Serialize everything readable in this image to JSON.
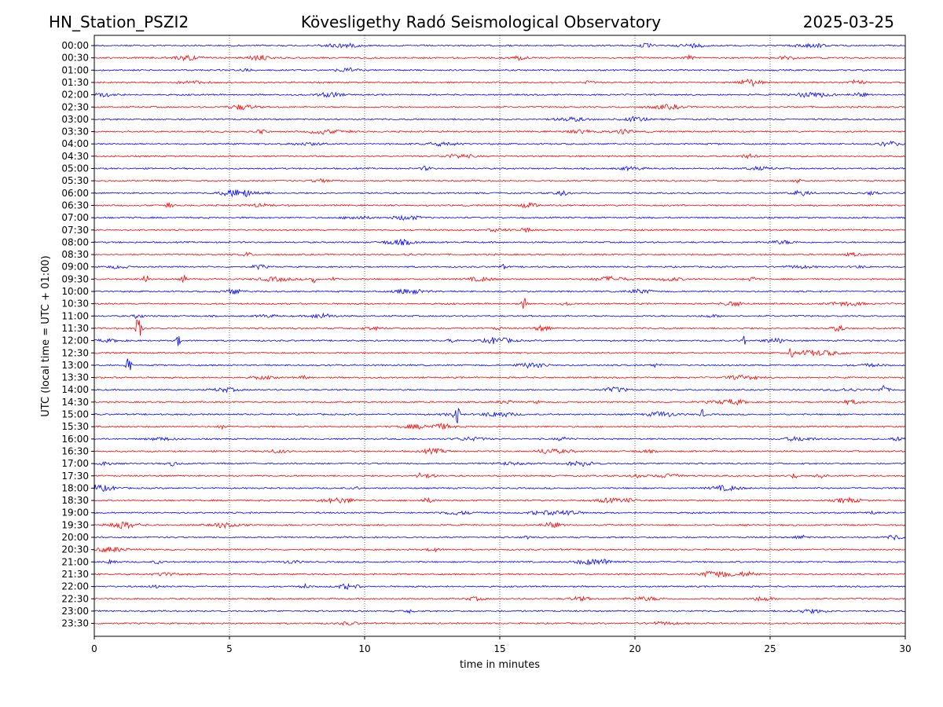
{
  "header": {
    "station": "HN_Station_PSZI2",
    "observatory": "Kövesligethy Radó Seismological Observatory",
    "date": "2025-03-25"
  },
  "colors": {
    "even_row": "#0000ff",
    "odd_row": "#ff0000",
    "grid": "#000000",
    "frame": "#000000"
  },
  "chart_data": {
    "type": "line",
    "title": "Kövesligethy Radó Seismological Observatory",
    "xlabel": "time in minutes",
    "ylabel": "UTC (local time = UTC + 01:00)",
    "xlim": [
      0,
      30
    ],
    "x_ticks": [
      0,
      5,
      10,
      15,
      20,
      25,
      30
    ],
    "grid": "vertical dotted at x ticks",
    "rows": [
      "00:00",
      "00:30",
      "01:00",
      "01:30",
      "02:00",
      "02:30",
      "03:00",
      "03:30",
      "04:00",
      "04:30",
      "05:00",
      "05:30",
      "06:00",
      "06:30",
      "07:00",
      "07:30",
      "08:00",
      "08:30",
      "09:00",
      "09:30",
      "10:00",
      "10:30",
      "11:00",
      "11:30",
      "12:00",
      "12:30",
      "13:00",
      "13:30",
      "14:00",
      "14:30",
      "15:00",
      "15:30",
      "16:00",
      "16:30",
      "17:00",
      "17:30",
      "18:00",
      "18:30",
      "19:00",
      "19:30",
      "20:00",
      "20:30",
      "21:00",
      "21:30",
      "22:00",
      "22:30",
      "23:00",
      "23:30"
    ],
    "events": [
      {
        "row": "09:30",
        "minute": 1.9,
        "amplitude": 0.5
      },
      {
        "row": "09:30",
        "minute": 3.3,
        "amplitude": 0.35
      },
      {
        "row": "09:30",
        "minute": 8.1,
        "amplitude": 0.5
      },
      {
        "row": "09:30",
        "minute": 8.9,
        "amplitude": 0.35
      },
      {
        "row": "10:30",
        "minute": 15.9,
        "amplitude": 0.45
      },
      {
        "row": "11:30",
        "minute": 1.65,
        "amplitude": 1.6
      },
      {
        "row": "12:00",
        "minute": 3.1,
        "amplitude": 0.4
      },
      {
        "row": "12:00",
        "minute": 13.2,
        "amplitude": 0.45
      },
      {
        "row": "12:00",
        "minute": 24.0,
        "amplitude": 0.45
      },
      {
        "row": "12:30",
        "minute": 25.8,
        "amplitude": 0.55
      },
      {
        "row": "13:00",
        "minute": 1.25,
        "amplitude": 0.9
      },
      {
        "row": "14:00",
        "minute": 29.2,
        "amplitude": 0.35
      },
      {
        "row": "15:00",
        "minute": 13.4,
        "amplitude": 1.0
      },
      {
        "row": "15:00",
        "minute": 22.5,
        "amplitude": 0.35
      },
      {
        "row": "17:30",
        "minute": 12.0,
        "amplitude": 0.3
      }
    ]
  }
}
